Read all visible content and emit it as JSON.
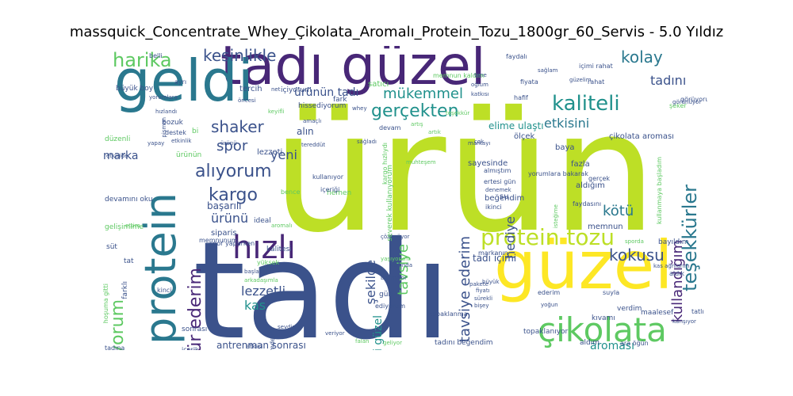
{
  "title": "massquick_Concentrate_Whey_Çikolata_Aromalı_Protein_Tozu_1800gr_60_Servis - 5.0 Yıldız",
  "words": [
    {
      "text": "ürün",
      "color": "#bddf26"
    },
    {
      "text": "tadı",
      "color": "#3b528b"
    },
    {
      "text": "tadı güzel",
      "color": "#482777"
    },
    {
      "text": "geldi",
      "color": "#2a788e"
    },
    {
      "text": "protein",
      "color": "#2a788e"
    },
    {
      "text": "güzel",
      "color": "#fde725"
    },
    {
      "text": "protein tozu",
      "color": "#bddf26"
    },
    {
      "text": "çikolata",
      "color": "#5ec962"
    },
    {
      "text": "hızlı",
      "color": "#482777"
    },
    {
      "text": "kaliteli",
      "color": "#21918c"
    },
    {
      "text": "gerçekten",
      "color": "#21918c"
    },
    {
      "text": "teşekkürler",
      "color": "#2a788e"
    },
    {
      "text": "kullanıyorum",
      "color": "#5ec962"
    },
    {
      "text": "teşekkür ederim",
      "color": "#482777"
    },
    {
      "text": "kargo",
      "color": "#3b528b"
    },
    {
      "text": "alıyorum",
      "color": "#3b528b"
    },
    {
      "text": "kokusu",
      "color": "#3b528b"
    },
    {
      "text": "kesinlikle",
      "color": "#3b528b"
    },
    {
      "text": "harika",
      "color": "#5ec962"
    },
    {
      "text": "kolay",
      "color": "#2a788e"
    },
    {
      "text": "mükemmel",
      "color": "#21918c"
    },
    {
      "text": "shaker",
      "color": "#3b528b"
    },
    {
      "text": "spor",
      "color": "#3b528b"
    },
    {
      "text": "etkisini",
      "color": "#2a788e"
    },
    {
      "text": "tadını",
      "color": "#3b528b"
    },
    {
      "text": "ürünün tadı",
      "color": "#3b528b"
    },
    {
      "text": "kullandığım",
      "color": "#482777"
    },
    {
      "text": "kötü",
      "color": "#2a788e"
    },
    {
      "text": "yeni",
      "color": "#3b528b"
    },
    {
      "text": "ürünü",
      "color": "#3b528b"
    },
    {
      "text": "hediye",
      "color": "#3b528b"
    },
    {
      "text": "tavsiye ederim",
      "color": "#3b528b"
    },
    {
      "text": "şekilde",
      "color": "#3b528b"
    },
    {
      "text": "tavsiye",
      "color": "#5ec962"
    },
    {
      "text": "lezzetli",
      "color": "#3b528b"
    },
    {
      "text": "kas",
      "color": "#21918c"
    },
    {
      "text": "aroması",
      "color": "#21918c"
    },
    {
      "text": "içimi güzel",
      "color": "#21918c"
    },
    {
      "text": "marka",
      "color": "#3b528b"
    },
    {
      "text": "alın",
      "color": "#3b528b"
    },
    {
      "text": "elime ulaştı",
      "color": "#21918c"
    },
    {
      "text": "antrenman sonrası",
      "color": "#3b528b"
    },
    {
      "text": "tadı içimi",
      "color": "#3b528b"
    },
    {
      "text": "başarılı",
      "color": "#3b528b"
    },
    {
      "text": "siparis",
      "color": "#3b528b"
    },
    {
      "text": "memnun",
      "color": "#3b528b"
    },
    {
      "text": "aldığım",
      "color": "#3b528b"
    },
    {
      "text": "fazla",
      "color": "#3b528b"
    },
    {
      "text": "baya",
      "color": "#3b528b"
    },
    {
      "text": "çikolata aroması",
      "color": "#3b528b"
    },
    {
      "text": "ölçek",
      "color": "#3b528b"
    },
    {
      "text": "spor yaparken",
      "color": "#3b528b"
    },
    {
      "text": "lezzeti",
      "color": "#3b528b"
    },
    {
      "text": "ürünün",
      "color": "#5ec962"
    },
    {
      "text": "devam",
      "color": "#3b528b"
    },
    {
      "text": "tercih",
      "color": "#3b528b"
    },
    {
      "text": "içiyorum",
      "color": "#3b528b"
    },
    {
      "text": "büyük boy",
      "color": "#3b528b"
    },
    {
      "text": "satıcı",
      "color": "#5ec962"
    },
    {
      "text": "memnun kaldım",
      "color": "#5ec962"
    },
    {
      "text": "sağlam",
      "color": "#3b528b"
    },
    {
      "text": "fiyatı uygun",
      "color": "#3b528b"
    },
    {
      "text": "süt",
      "color": "#3b528b"
    },
    {
      "text": "gelişimime",
      "color": "#5ec962"
    },
    {
      "text": "tadına",
      "color": "#3b528b"
    },
    {
      "text": "bozuk",
      "color": "#3b528b"
    },
    {
      "text": "düzenli",
      "color": "#5ec962"
    },
    {
      "text": "bi",
      "color": "#5ec962"
    },
    {
      "text": "hemen",
      "color": "#5ec962"
    },
    {
      "text": "kalitesi",
      "color": "#3b528b"
    },
    {
      "text": "ideal",
      "color": "#3b528b"
    },
    {
      "text": "tat",
      "color": "#3b528b"
    },
    {
      "text": "farklı",
      "color": "#3b528b"
    },
    {
      "text": "kinci",
      "color": "#3b528b"
    },
    {
      "text": "sonrası",
      "color": "#3b528b"
    },
    {
      "text": "etkisi",
      "color": "#3b528b"
    },
    {
      "text": "içerik",
      "color": "#3b528b"
    },
    {
      "text": "gün",
      "color": "#3b528b"
    },
    {
      "text": "ediyorum",
      "color": "#3b528b"
    },
    {
      "text": "topaklanma",
      "color": "#3b528b"
    },
    {
      "text": "tadını beğendim",
      "color": "#3b528b"
    },
    {
      "text": "topaklanıyor",
      "color": "#3b528b"
    },
    {
      "text": "aldım",
      "color": "#3b528b"
    },
    {
      "text": "ara öğün",
      "color": "#3b528b"
    },
    {
      "text": "ederim",
      "color": "#3b528b"
    },
    {
      "text": "kıvamı",
      "color": "#3b528b"
    },
    {
      "text": "verdim",
      "color": "#3b528b"
    },
    {
      "text": "maalesef",
      "color": "#3b528b"
    },
    {
      "text": "suyla",
      "color": "#3b528b"
    },
    {
      "text": "bayıldım",
      "color": "#3b528b"
    },
    {
      "text": "görüyorum",
      "color": "#3b528b"
    },
    {
      "text": "beğendim",
      "color": "#3b528b"
    },
    {
      "text": "ikinci",
      "color": "#3b528b"
    },
    {
      "text": "sayesinde",
      "color": "#3b528b"
    },
    {
      "text": "faydasını",
      "color": "#3b528b"
    },
    {
      "text": "gerçek",
      "color": "#3b528b"
    },
    {
      "text": "fark",
      "color": "#3b528b"
    },
    {
      "text": "hissediyorum",
      "color": "#3b528b"
    },
    {
      "text": "içeriği",
      "color": "#3b528b"
    },
    {
      "text": "kullanıyor",
      "color": "#3b528b"
    },
    {
      "text": "su",
      "color": "#3b528b"
    },
    {
      "text": "markanın",
      "color": "#3b528b"
    },
    {
      "text": "devamını oku",
      "color": "#3b528b"
    },
    {
      "text": "bakarak aldım",
      "color": "#5ec962"
    },
    {
      "text": "üzerinde",
      "color": "#3b528b"
    },
    {
      "text": "fiyata",
      "color": "#3b528b"
    },
    {
      "text": "rahat",
      "color": "#3b528b"
    },
    {
      "text": "içimi rahat",
      "color": "#3b528b"
    },
    {
      "text": "faydalı",
      "color": "#3b528b"
    },
    {
      "text": "belli",
      "color": "#3b528b"
    },
    {
      "text": "ayrı",
      "color": "#3b528b"
    },
    {
      "text": "tatlı",
      "color": "#3b528b"
    },
    {
      "text": "sevdim",
      "color": "#3b528b"
    },
    {
      "text": "veriyor",
      "color": "#3b528b"
    },
    {
      "text": "elimdeydi",
      "color": "#3b528b"
    },
    {
      "text": "yoğun",
      "color": "#3b528b"
    },
    {
      "text": "bence",
      "color": "#5ec962"
    },
    {
      "text": "hafif",
      "color": "#3b528b"
    },
    {
      "text": "kullanmaya başladım",
      "color": "#5ec962"
    },
    {
      "text": "yorumlara bakarak",
      "color": "#3b528b"
    },
    {
      "text": "almıştım",
      "color": "#3b528b"
    },
    {
      "text": "ertesi gün",
      "color": "#3b528b"
    },
    {
      "text": "artık",
      "color": "#5ec962"
    },
    {
      "text": "arkadaşımla",
      "color": "#5ec962"
    },
    {
      "text": "sporda",
      "color": "#5ec962"
    },
    {
      "text": "kas ağrılarım",
      "color": "#3b528b"
    },
    {
      "text": "hoşuma gitti",
      "color": "#5ec962"
    },
    {
      "text": "çözünüyor",
      "color": "#3b528b"
    },
    {
      "text": "yanında",
      "color": "#3b528b"
    },
    {
      "text": "fiyatı",
      "color": "#3b528b"
    },
    {
      "text": "sürekli",
      "color": "#3b528b"
    },
    {
      "text": "bişey",
      "color": "#3b528b"
    },
    {
      "text": "falan",
      "color": "#5ec962"
    },
    {
      "text": "geliyor",
      "color": "#5ec962"
    },
    {
      "text": "tane",
      "color": "#3b528b"
    },
    {
      "text": "oğlum",
      "color": "#3b528b"
    },
    {
      "text": "katkısı",
      "color": "#3b528b"
    },
    {
      "text": "whey",
      "color": "#3b528b"
    },
    {
      "text": "öncesi",
      "color": "#3b528b"
    },
    {
      "text": "net",
      "color": "#3b528b"
    },
    {
      "text": "çok",
      "color": "#3b528b"
    },
    {
      "text": "markayı",
      "color": "#3b528b"
    },
    {
      "text": "denemek",
      "color": "#3b528b"
    },
    {
      "text": "teşekkür",
      "color": "#5ec962"
    },
    {
      "text": "şeker",
      "color": "#5ec962"
    },
    {
      "text": "aldık",
      "color": "#3b528b"
    },
    {
      "text": "yüksek",
      "color": "#5ec962"
    },
    {
      "text": "destek",
      "color": "#3b528b"
    },
    {
      "text": "yapay",
      "color": "#3b528b"
    },
    {
      "text": "hızlandı",
      "color": "#3b528b"
    },
    {
      "text": "etkinlik",
      "color": "#3b528b"
    },
    {
      "text": "amaçlı",
      "color": "#3b528b"
    },
    {
      "text": "artış",
      "color": "#5ec962"
    },
    {
      "text": "sağladı",
      "color": "#3b528b"
    },
    {
      "text": "tereddüt",
      "color": "#3b528b"
    },
    {
      "text": "keyifli",
      "color": "#5ec962"
    },
    {
      "text": "büyük",
      "color": "#3b528b"
    },
    {
      "text": "memnunum",
      "color": "#3b528b"
    },
    {
      "text": "başladım",
      "color": "#3b528b"
    },
    {
      "text": "ettim",
      "color": "#5ec962"
    },
    {
      "text": "yorumlara",
      "color": "#3b528b"
    },
    {
      "text": "pişman",
      "color": "#3b528b"
    },
    {
      "text": "karışıyor",
      "color": "#3b528b"
    },
    {
      "text": "görünüyor",
      "color": "#3b528b"
    },
    {
      "text": "güzelim",
      "color": "#3b528b"
    },
    {
      "text": "etkiside",
      "color": "#3b528b"
    },
    {
      "text": "yaşıyorum",
      "color": "#5ec962"
    },
    {
      "text": "baymıyor",
      "color": "#3b528b"
    },
    {
      "text": "pakete",
      "color": "#3b528b"
    },
    {
      "text": "ürünü",
      "color": "#3b528b"
    },
    {
      "text": "aromalı",
      "color": "#5ec962"
    },
    {
      "text": "muhteşem",
      "color": "#5ec962"
    },
    {
      "text": "severek kullanıyorum",
      "color": "#5ec962"
    },
    {
      "text": "kargo hızlıydı",
      "color": "#5ec962"
    },
    {
      "text": "isteğime",
      "color": "#5ec962"
    }
  ]
}
